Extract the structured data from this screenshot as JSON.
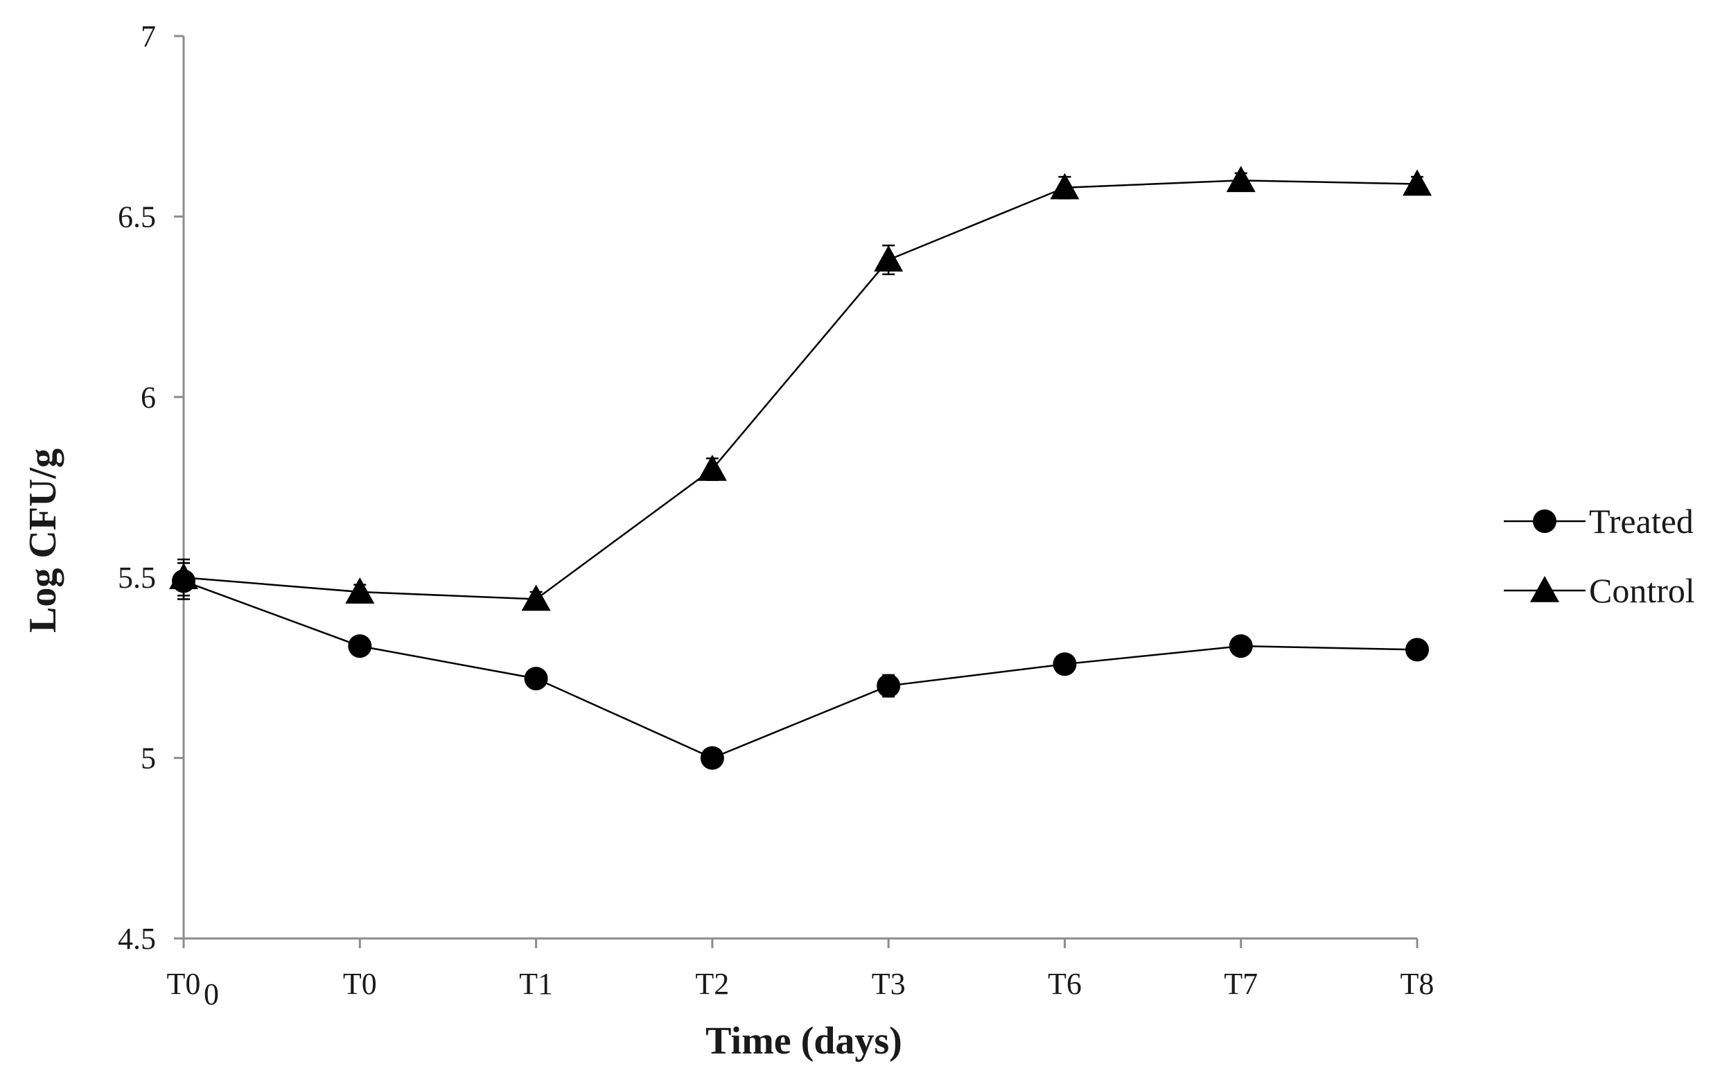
{
  "chart_data": {
    "type": "line",
    "title": "",
    "xlabel": "Time (days)",
    "ylabel": "Log CFU/g",
    "categories": [
      "T0",
      "T0",
      "T1",
      "T2",
      "T3",
      "T6",
      "T7",
      "T8"
    ],
    "first_category_subscript": "0",
    "ylim": [
      4.5,
      7
    ],
    "yticks": [
      "4.5",
      "5",
      "5.5",
      "6",
      "6.5",
      "7"
    ],
    "ytick_values": [
      4.5,
      5,
      5.5,
      6,
      6.5,
      7
    ],
    "grid": false,
    "legend_position": "right",
    "series": [
      {
        "name": "Treated",
        "marker": "circle",
        "values": [
          5.49,
          5.31,
          5.22,
          5.0,
          5.2,
          5.26,
          5.31,
          5.3
        ],
        "errors": [
          0.05,
          0.02,
          0.02,
          0.01,
          0.03,
          0.02,
          0.02,
          0.02
        ]
      },
      {
        "name": "Control",
        "marker": "triangle",
        "values": [
          5.5,
          5.46,
          5.44,
          5.8,
          6.38,
          6.58,
          6.6,
          6.59
        ],
        "errors": [
          0.05,
          0.02,
          0.02,
          0.03,
          0.04,
          0.03,
          0.02,
          0.02
        ]
      }
    ],
    "colors": {
      "line": "#000000",
      "axis": "#8c8c8c"
    }
  }
}
